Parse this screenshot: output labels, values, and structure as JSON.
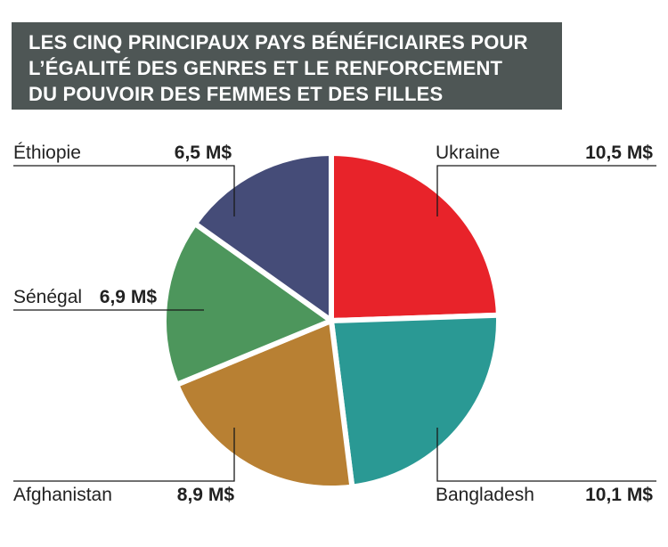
{
  "title_lines": [
    "LES CINQ PRINCIPAUX PAYS BÉNÉFICIAIRES POUR",
    "L’ÉGALITÉ DES GENRES ET LE RENFORCEMENT",
    "DU POUVOIR DES FEMMES ET DES FILLES"
  ],
  "chart_data": {
    "type": "pie",
    "title": "LES CINQ PRINCIPAUX PAYS BÉNÉFICIAIRES POUR L’ÉGALITÉ DES GENRES ET LE RENFORCEMENT DU POUVOIR DES FEMMES ET DES FILLES",
    "slices": [
      {
        "label": "Ukraine",
        "value": 10.5,
        "value_label": "10,5 M$",
        "color": "#e8232a"
      },
      {
        "label": "Bangladesh",
        "value": 10.1,
        "value_label": "10,1 M$",
        "color": "#2a9994"
      },
      {
        "label": "Afghanistan",
        "value": 8.9,
        "value_label": "8,9 M$",
        "color": "#b88033"
      },
      {
        "label": "Sénégal",
        "value": 6.9,
        "value_label": "6,9 M$",
        "color": "#4d965c"
      },
      {
        "label": "Éthiopie",
        "value": 6.5,
        "value_label": "6,5 M$",
        "color": "#454c78"
      }
    ],
    "unit": "M$"
  }
}
